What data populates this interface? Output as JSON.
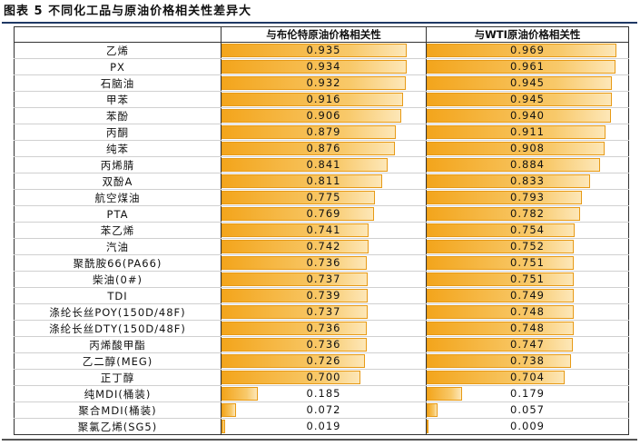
{
  "title": "图表 5 不同化工品与原油价格相关性差异大",
  "headers": {
    "name": "",
    "brent": "与布伦特原油价格相关性",
    "wti": "与WTI原油价格相关性"
  },
  "colors": {
    "bar_dark": "#f3a51c",
    "bar_light": "#fde7b8",
    "title_rule": "#1f3864"
  },
  "rows": [
    {
      "name": "乙烯",
      "brent": "0.935",
      "wti": "0.969"
    },
    {
      "name": "PX",
      "brent": "0.934",
      "wti": "0.961"
    },
    {
      "name": "石脑油",
      "brent": "0.932",
      "wti": "0.945"
    },
    {
      "name": "甲苯",
      "brent": "0.916",
      "wti": "0.945"
    },
    {
      "name": "苯酚",
      "brent": "0.906",
      "wti": "0.940"
    },
    {
      "name": "丙酮",
      "brent": "0.879",
      "wti": "0.911"
    },
    {
      "name": "纯苯",
      "brent": "0.876",
      "wti": "0.908"
    },
    {
      "name": "丙烯腈",
      "brent": "0.841",
      "wti": "0.884"
    },
    {
      "name": "双酚A",
      "brent": "0.811",
      "wti": "0.833"
    },
    {
      "name": "航空煤油",
      "brent": "0.775",
      "wti": "0.793"
    },
    {
      "name": "PTA",
      "brent": "0.769",
      "wti": "0.782"
    },
    {
      "name": "苯乙烯",
      "brent": "0.741",
      "wti": "0.754"
    },
    {
      "name": "汽油",
      "brent": "0.742",
      "wti": "0.752"
    },
    {
      "name": "聚酰胺66(PA66)",
      "brent": "0.736",
      "wti": "0.751"
    },
    {
      "name": "柴油(0#)",
      "brent": "0.737",
      "wti": "0.751"
    },
    {
      "name": "TDI",
      "brent": "0.739",
      "wti": "0.749"
    },
    {
      "name": "涤纶长丝POY(150D/48F)",
      "brent": "0.737",
      "wti": "0.748"
    },
    {
      "name": "涤纶长丝DTY(150D/48F)",
      "brent": "0.736",
      "wti": "0.748"
    },
    {
      "name": "丙烯酸甲酯",
      "brent": "0.736",
      "wti": "0.747"
    },
    {
      "name": "乙二醇(MEG)",
      "brent": "0.726",
      "wti": "0.738"
    },
    {
      "name": "正丁醇",
      "brent": "0.700",
      "wti": "0.704"
    },
    {
      "name": "纯MDI(桶装)",
      "brent": "0.185",
      "wti": "0.179"
    },
    {
      "name": "聚合MDI(桶装)",
      "brent": "0.072",
      "wti": "0.057"
    },
    {
      "name": "聚氯乙烯(SG5)",
      "brent": "0.019",
      "wti": "0.009"
    }
  ]
}
